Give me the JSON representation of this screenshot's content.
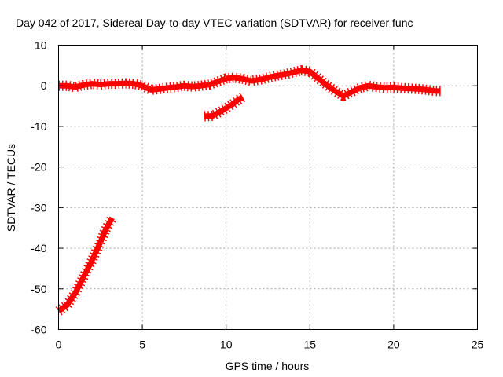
{
  "chart_data": {
    "type": "line",
    "title": "Day 042 of 2017, Sidereal Day-to-day VTEC variation (SDTVAR) for receiver func",
    "xlabel": "GPS time / hours",
    "ylabel": "SDTVAR / TECUs",
    "xlim": [
      0,
      25
    ],
    "ylim": [
      -60,
      10
    ],
    "xticks": [
      0,
      5,
      10,
      15,
      20,
      25
    ],
    "yticks": [
      10,
      0,
      -10,
      -20,
      -30,
      -40,
      -50,
      -60
    ],
    "xtick_labels": [
      "0",
      "5",
      "10",
      "15",
      "20",
      "25"
    ],
    "ytick_labels": [
      "10",
      "0",
      "-10",
      "-20",
      "-30",
      "-40",
      "-50",
      "-60"
    ],
    "grid": true,
    "legend": "none",
    "color": "#ff0000",
    "series": [
      {
        "name": "segment-1",
        "x": [
          0.0,
          0.5,
          1.0,
          1.5,
          2.0,
          2.5,
          2.8,
          3.0,
          3.2
        ],
        "y": [
          -55.5,
          -54.0,
          -51.0,
          -47.0,
          -43.0,
          -38.5,
          -35.5,
          -34.0,
          -32.5
        ]
      },
      {
        "name": "segment-2",
        "x": [
          0.0,
          0.5,
          1.0,
          1.5,
          2.0,
          2.5,
          3.0,
          3.5,
          4.0,
          4.5,
          5.0,
          5.5,
          6.0,
          6.5,
          7.0,
          7.5,
          8.0,
          8.5,
          9.0,
          9.5,
          10.0,
          10.5,
          11.0,
          11.5,
          12.0,
          12.5,
          13.0,
          13.5,
          14.0,
          14.5,
          15.0,
          15.5,
          16.0,
          16.5,
          17.0,
          17.5,
          18.0,
          18.5,
          19.0,
          19.5,
          20.0,
          20.5,
          21.0,
          21.5,
          22.0,
          22.5,
          22.8
        ],
        "y": [
          0.0,
          0.0,
          -0.3,
          0.2,
          0.5,
          0.3,
          0.5,
          0.5,
          0.6,
          0.5,
          0.0,
          -1.0,
          -0.8,
          -0.5,
          -0.3,
          0.0,
          -0.2,
          0.0,
          0.3,
          1.0,
          1.8,
          2.0,
          1.7,
          1.2,
          1.5,
          2.0,
          2.5,
          2.8,
          3.3,
          3.8,
          3.5,
          1.8,
          0.2,
          -1.3,
          -2.5,
          -1.5,
          -0.5,
          0.0,
          -0.3,
          -0.5,
          -0.4,
          -0.6,
          -0.7,
          -0.8,
          -1.0,
          -1.3,
          -1.3
        ]
      },
      {
        "name": "segment-3",
        "x": [
          8.7,
          9.2,
          9.6,
          10.0,
          10.4,
          10.7,
          11.0
        ],
        "y": [
          -7.5,
          -7.4,
          -6.5,
          -5.5,
          -4.5,
          -3.5,
          -2.8
        ]
      }
    ]
  }
}
